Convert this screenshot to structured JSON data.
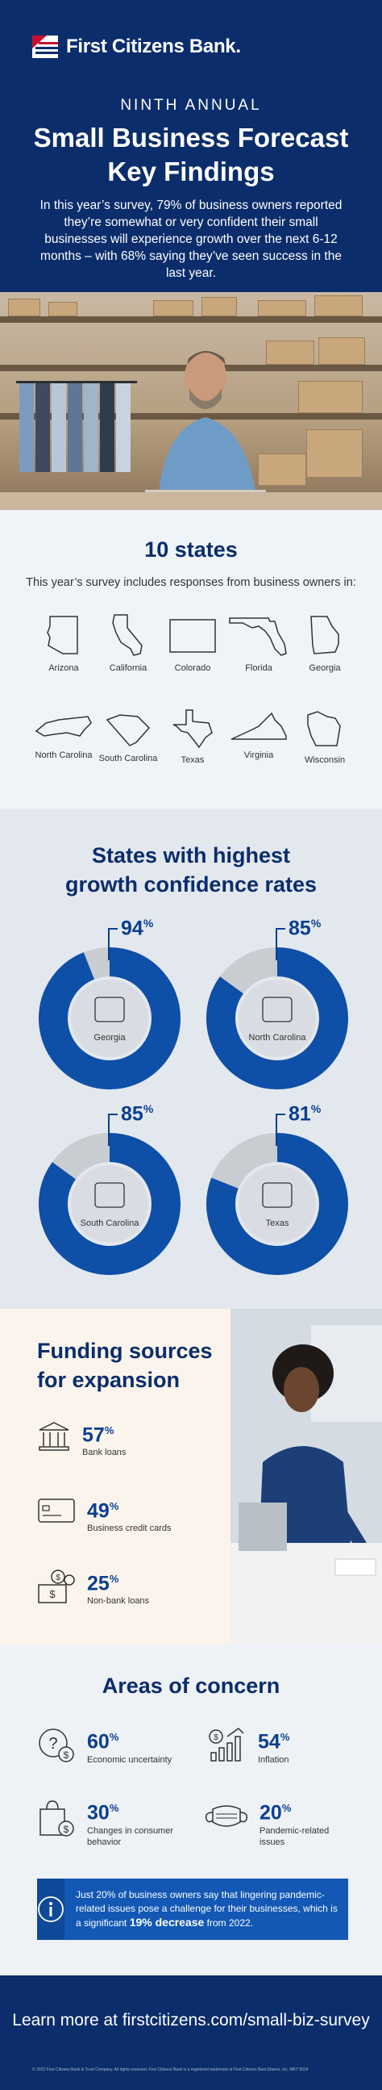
{
  "header": {
    "brand": "First Citizens Bank.",
    "eyebrow": "NINTH ANNUAL",
    "title_line1": "Small Business Forecast",
    "title_line2": "Key Findings",
    "intro": "In this year’s survey, 79% of business owners reported they’re somewhat or very confident their small businesses will experience growth over the next 6-12 months – with 68% saying they’ve seen success in the last year."
  },
  "states_section": {
    "title": "10 states",
    "subtitle": "This year’s survey includes responses from business owners in:",
    "states": [
      "Arizona",
      "California",
      "Colorado",
      "Florida",
      "Georgia",
      "North Carolina",
      "South Carolina",
      "Texas",
      "Virginia",
      "Wisconsin"
    ]
  },
  "growth_section": {
    "title_line1": "States with highest",
    "title_line2": "growth confidence rates",
    "chart_data": {
      "type": "pie",
      "series": [
        {
          "name": "Georgia",
          "value": 94,
          "label": "94"
        },
        {
          "name": "North Carolina",
          "value": 85,
          "label": "85"
        },
        {
          "name": "South Carolina",
          "value": 85,
          "label": "85"
        },
        {
          "name": "Texas",
          "value": 81,
          "label": "81"
        }
      ],
      "unit": "%",
      "colors": {
        "filled": "#0e4fa8",
        "remaining": "#c9ccd1",
        "center": "#d9dde3"
      }
    }
  },
  "funding_section": {
    "title_line1": "Funding sources",
    "title_line2": "for expansion",
    "items": [
      {
        "value": "57",
        "label": "Bank loans",
        "icon": "bank-icon"
      },
      {
        "value": "49",
        "label": "Business credit cards",
        "icon": "credit-card-icon"
      },
      {
        "value": "25",
        "label": "Non-bank loans",
        "icon": "cash-icon"
      }
    ],
    "unit": "%"
  },
  "concern_section": {
    "title": "Areas of concern",
    "items": [
      {
        "value": "60",
        "label": "Economic uncertainty",
        "icon": "question-money-icon"
      },
      {
        "value": "54",
        "label": "Inflation",
        "icon": "rising-bars-icon"
      },
      {
        "value": "30",
        "label": "Changes in consumer behavior",
        "icon": "shopping-bag-icon"
      },
      {
        "value": "20",
        "label": "Pandemic-related issues",
        "icon": "mask-icon"
      }
    ],
    "unit": "%",
    "callout_pre": "Just 20% of business owners say that lingering pandemic-related issues pose a challenge for their businesses, which is a significant ",
    "callout_bold": "19% decrease",
    "callout_post": " from 2022."
  },
  "footer": {
    "cta": "Learn more at firstcitizens.com/small-biz-survey",
    "legal": "© 2023 First-Citizens Bank & Trust Company. All rights reserved. First Citizens Bank is a registered trademark of First Citizens BancShares, Inc. MKT 8024"
  },
  "colors": {
    "navy": "#0b2d6b",
    "blue": "#0b3f8f",
    "callout": "#1258b4",
    "red": "#c8102e"
  }
}
